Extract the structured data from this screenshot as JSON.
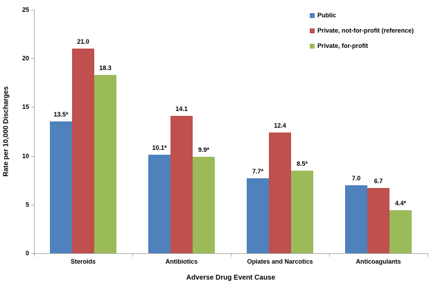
{
  "chart_data": {
    "type": "bar",
    "title": "",
    "xlabel": "Adverse Drug Event Cause",
    "ylabel": "Rate per 10,000 Discharges",
    "ylim": [
      0,
      25
    ],
    "ytick_step": 5,
    "grid": false,
    "legend_position": "top-right",
    "categories": [
      "Steroids",
      "Antibiotics",
      "Opiates and Narcotics",
      "Anticoagulants"
    ],
    "series": [
      {
        "name": "Public",
        "color": "#4F81BD",
        "values": [
          13.5,
          10.1,
          7.7,
          7.0
        ],
        "labels": [
          "13.5*",
          "10.1*",
          "7.7*",
          "7.0"
        ]
      },
      {
        "name": "Private, not-for-profit (reference)",
        "color": "#C0504D",
        "values": [
          21.0,
          14.1,
          12.4,
          6.7
        ],
        "labels": [
          "21.0",
          "14.1",
          "12.4",
          "6.7"
        ]
      },
      {
        "name": "Private, for-profit",
        "color": "#9BBB59",
        "values": [
          18.3,
          9.9,
          8.5,
          4.4
        ],
        "labels": [
          "18.3",
          "9.9*",
          "8.5*",
          "4.4*"
        ]
      }
    ],
    "axis_color": "#B0B0B0",
    "text_color": "#000000",
    "background_color": "#FFFFFF"
  }
}
